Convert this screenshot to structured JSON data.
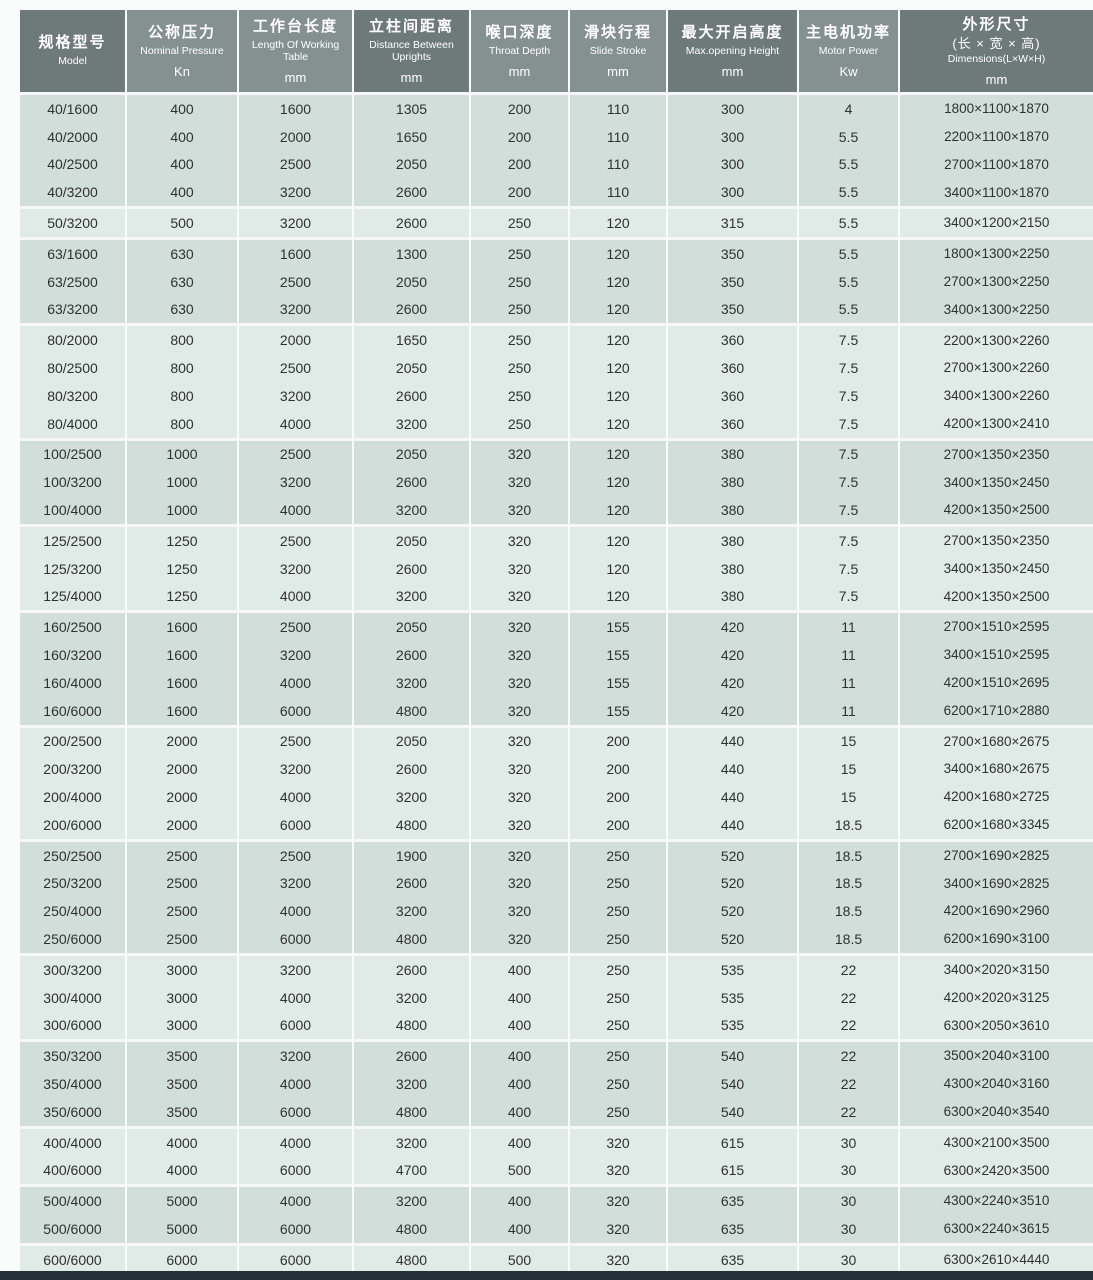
{
  "table": {
    "columns": [
      {
        "zh": "规格型号",
        "zh2": "",
        "en": "Model",
        "unit": ""
      },
      {
        "zh": "公称压力",
        "zh2": "",
        "en": "Nominal Pressure",
        "unit": "Kn"
      },
      {
        "zh": "工作台长度",
        "zh2": "",
        "en": "Length Of Working Table",
        "unit": "mm"
      },
      {
        "zh": "立柱间距离",
        "zh2": "",
        "en": "Distance Between Uprights",
        "unit": "mm"
      },
      {
        "zh": "喉口深度",
        "zh2": "",
        "en": "Throat Depth",
        "unit": "mm"
      },
      {
        "zh": "滑块行程",
        "zh2": "",
        "en": "Slide Stroke",
        "unit": "mm"
      },
      {
        "zh": "最大开启高度",
        "zh2": "",
        "en": "Max.opening Height",
        "unit": "mm"
      },
      {
        "zh": "主电机功率",
        "zh2": "",
        "en": "Motor Power",
        "unit": "Kw"
      },
      {
        "zh": "外形尺寸",
        "zh2": "(长 × 宽 × 高)",
        "en": "Dimensions(L×W×H)",
        "unit": "mm"
      }
    ],
    "rows": [
      [
        "40/1600",
        "400",
        "1600",
        "1305",
        "200",
        "110",
        "300",
        "4",
        "1800×1100×1870"
      ],
      [
        "40/2000",
        "400",
        "2000",
        "1650",
        "200",
        "110",
        "300",
        "5.5",
        "2200×1100×1870"
      ],
      [
        "40/2500",
        "400",
        "2500",
        "2050",
        "200",
        "110",
        "300",
        "5.5",
        "2700×1100×1870"
      ],
      [
        "40/3200",
        "400",
        "3200",
        "2600",
        "200",
        "110",
        "300",
        "5.5",
        "3400×1100×1870"
      ],
      [
        "50/3200",
        "500",
        "3200",
        "2600",
        "250",
        "120",
        "315",
        "5.5",
        "3400×1200×2150"
      ],
      [
        "63/1600",
        "630",
        "1600",
        "1300",
        "250",
        "120",
        "350",
        "5.5",
        "1800×1300×2250"
      ],
      [
        "63/2500",
        "630",
        "2500",
        "2050",
        "250",
        "120",
        "350",
        "5.5",
        "2700×1300×2250"
      ],
      [
        "63/3200",
        "630",
        "3200",
        "2600",
        "250",
        "120",
        "350",
        "5.5",
        "3400×1300×2250"
      ],
      [
        "80/2000",
        "800",
        "2000",
        "1650",
        "250",
        "120",
        "360",
        "7.5",
        "2200×1300×2260"
      ],
      [
        "80/2500",
        "800",
        "2500",
        "2050",
        "250",
        "120",
        "360",
        "7.5",
        "2700×1300×2260"
      ],
      [
        "80/3200",
        "800",
        "3200",
        "2600",
        "250",
        "120",
        "360",
        "7.5",
        "3400×1300×2260"
      ],
      [
        "80/4000",
        "800",
        "4000",
        "3200",
        "250",
        "120",
        "360",
        "7.5",
        "4200×1300×2410"
      ],
      [
        "100/2500",
        "1000",
        "2500",
        "2050",
        "320",
        "120",
        "380",
        "7.5",
        "2700×1350×2350"
      ],
      [
        "100/3200",
        "1000",
        "3200",
        "2600",
        "320",
        "120",
        "380",
        "7.5",
        "3400×1350×2450"
      ],
      [
        "100/4000",
        "1000",
        "4000",
        "3200",
        "320",
        "120",
        "380",
        "7.5",
        "4200×1350×2500"
      ],
      [
        "125/2500",
        "1250",
        "2500",
        "2050",
        "320",
        "120",
        "380",
        "7.5",
        "2700×1350×2350"
      ],
      [
        "125/3200",
        "1250",
        "3200",
        "2600",
        "320",
        "120",
        "380",
        "7.5",
        "3400×1350×2450"
      ],
      [
        "125/4000",
        "1250",
        "4000",
        "3200",
        "320",
        "120",
        "380",
        "7.5",
        "4200×1350×2500"
      ],
      [
        "160/2500",
        "1600",
        "2500",
        "2050",
        "320",
        "155",
        "420",
        "11",
        "2700×1510×2595"
      ],
      [
        "160/3200",
        "1600",
        "3200",
        "2600",
        "320",
        "155",
        "420",
        "11",
        "3400×1510×2595"
      ],
      [
        "160/4000",
        "1600",
        "4000",
        "3200",
        "320",
        "155",
        "420",
        "11",
        "4200×1510×2695"
      ],
      [
        "160/6000",
        "1600",
        "6000",
        "4800",
        "320",
        "155",
        "420",
        "11",
        "6200×1710×2880"
      ],
      [
        "200/2500",
        "2000",
        "2500",
        "2050",
        "320",
        "200",
        "440",
        "15",
        "2700×1680×2675"
      ],
      [
        "200/3200",
        "2000",
        "3200",
        "2600",
        "320",
        "200",
        "440",
        "15",
        "3400×1680×2675"
      ],
      [
        "200/4000",
        "2000",
        "4000",
        "3200",
        "320",
        "200",
        "440",
        "15",
        "4200×1680×2725"
      ],
      [
        "200/6000",
        "2000",
        "6000",
        "4800",
        "320",
        "200",
        "440",
        "18.5",
        "6200×1680×3345"
      ],
      [
        "250/2500",
        "2500",
        "2500",
        "1900",
        "320",
        "250",
        "520",
        "18.5",
        "2700×1690×2825"
      ],
      [
        "250/3200",
        "2500",
        "3200",
        "2600",
        "320",
        "250",
        "520",
        "18.5",
        "3400×1690×2825"
      ],
      [
        "250/4000",
        "2500",
        "4000",
        "3200",
        "320",
        "250",
        "520",
        "18.5",
        "4200×1690×2960"
      ],
      [
        "250/6000",
        "2500",
        "6000",
        "4800",
        "320",
        "250",
        "520",
        "18.5",
        "6200×1690×3100"
      ],
      [
        "300/3200",
        "3000",
        "3200",
        "2600",
        "400",
        "250",
        "535",
        "22",
        "3400×2020×3150"
      ],
      [
        "300/4000",
        "3000",
        "4000",
        "3200",
        "400",
        "250",
        "535",
        "22",
        "4200×2020×3125"
      ],
      [
        "300/6000",
        "3000",
        "6000",
        "4800",
        "400",
        "250",
        "535",
        "22",
        "6300×2050×3610"
      ],
      [
        "350/3200",
        "3500",
        "3200",
        "2600",
        "400",
        "250",
        "540",
        "22",
        "3500×2040×3100"
      ],
      [
        "350/4000",
        "3500",
        "4000",
        "3200",
        "400",
        "250",
        "540",
        "22",
        "4300×2040×3160"
      ],
      [
        "350/6000",
        "3500",
        "6000",
        "4800",
        "400",
        "250",
        "540",
        "22",
        "6300×2040×3540"
      ],
      [
        "400/4000",
        "4000",
        "4000",
        "3200",
        "400",
        "320",
        "615",
        "30",
        "4300×2100×3500"
      ],
      [
        "400/6000",
        "4000",
        "6000",
        "4700",
        "500",
        "320",
        "615",
        "30",
        "6300×2420×3500"
      ],
      [
        "500/4000",
        "5000",
        "4000",
        "3200",
        "400",
        "320",
        "635",
        "30",
        "4300×2240×3510"
      ],
      [
        "500/6000",
        "5000",
        "6000",
        "4800",
        "400",
        "320",
        "635",
        "30",
        "6300×2240×3615"
      ],
      [
        "600/6000",
        "6000",
        "6000",
        "4800",
        "500",
        "320",
        "635",
        "30",
        "6300×2610×4440"
      ]
    ]
  },
  "colors": {
    "page_bg": "#fafcfb",
    "separator": "#f6f8f8",
    "header_dark": "#6e7979",
    "header_light": "#859090",
    "header_text": "#ffffff",
    "row_dark": "#d2deda",
    "row_light": "#e0eae6",
    "cell_text": "#2d3230",
    "footer_bar": "#232f39"
  }
}
